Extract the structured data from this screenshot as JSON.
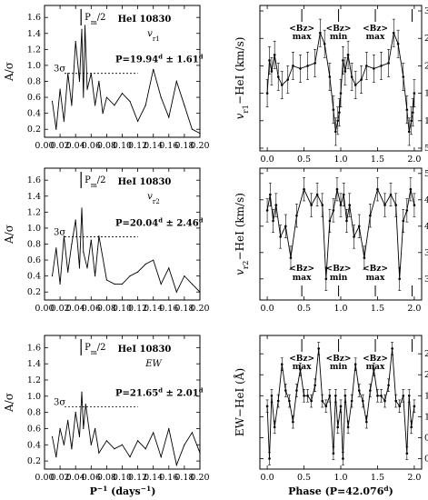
{
  "figure": {
    "left_panels": [
      {
        "pm_label": "P",
        "pm_sub": "m",
        "pm_tail": "/2",
        "line_label": "HeI 10830",
        "quantity": "v",
        "quantity_sub": "r1",
        "period_text": "P=19.94",
        "period_err": "± 1.61",
        "day_sup": "d",
        "sigma_label": "3σ",
        "ylabel": "A/σ"
      },
      {
        "pm_label": "P",
        "pm_sub": "m",
        "pm_tail": "/2",
        "line_label": "HeI 10830",
        "quantity": "v",
        "quantity_sub": "r2",
        "period_text": "P=20.04",
        "period_err": "± 2.46",
        "day_sup": "d",
        "sigma_label": "3σ",
        "ylabel": "A/σ"
      },
      {
        "pm_label": "P",
        "pm_sub": "m",
        "pm_tail": "/2",
        "line_label": "HeI 10830",
        "quantity": "EW",
        "quantity_sub": "",
        "period_text": "P=21.65",
        "period_err": "± 2.01",
        "day_sup": "d",
        "sigma_label": "3σ",
        "ylabel": "A/σ"
      }
    ],
    "right_panels": [
      {
        "ylabel": "v",
        "ylabel_sub": "r1",
        "ylabel_tail": "−HeI  (km/s)"
      },
      {
        "ylabel": "v",
        "ylabel_sub": "r2",
        "ylabel_tail": "−HeI  (km/s)"
      },
      {
        "ylabel": "EW−HeI  (Å)"
      }
    ],
    "bz_labels": {
      "top": "<Bz>",
      "max": "max",
      "min": "min"
    },
    "left_xlabel": "P",
    "left_xlabel_sup": "−1",
    "left_xlabel_unit": " (days",
    "left_xlabel_unit_sup": "−1",
    "left_xlabel_close": ")",
    "right_xlabel": "Phase (P=42.076",
    "right_xlabel_sup": "d",
    "right_xlabel_close": ")"
  },
  "chart_data": [
    {
      "type": "line",
      "panel": "periodogram-vr1",
      "xlim": [
        0,
        0.2
      ],
      "ylim": [
        0.1,
        1.75
      ],
      "xticks": [
        "0.00",
        "0.02",
        "0.04",
        "0.06",
        "0.08",
        "0.10",
        "0.12",
        "0.14",
        "0.16",
        "0.18",
        "0.20"
      ],
      "yticks": [
        "0.2",
        "0.4",
        "0.6",
        "0.8",
        "1.0",
        "1.2",
        "1.4",
        "1.6"
      ],
      "x": [
        0.01,
        0.015,
        0.02,
        0.025,
        0.03,
        0.035,
        0.04,
        0.045,
        0.048,
        0.05,
        0.052,
        0.055,
        0.06,
        0.065,
        0.07,
        0.075,
        0.08,
        0.09,
        0.1,
        0.11,
        0.12,
        0.13,
        0.14,
        0.15,
        0.16,
        0.17,
        0.18,
        0.19,
        0.2
      ],
      "y": [
        0.55,
        0.2,
        0.7,
        0.3,
        0.9,
        0.5,
        1.3,
        0.8,
        1.45,
        0.6,
        1.5,
        0.7,
        0.9,
        0.5,
        0.8,
        0.4,
        0.6,
        0.5,
        0.65,
        0.55,
        0.3,
        0.5,
        0.95,
        0.6,
        0.35,
        0.8,
        0.5,
        0.2,
        0.15
      ],
      "threshold_3sigma": 0.9,
      "pm_half_x": 0.047
    },
    {
      "type": "line",
      "panel": "periodogram-vr2",
      "xlim": [
        0,
        0.2
      ],
      "ylim": [
        0.1,
        1.75
      ],
      "xticks": [
        "0.00",
        "0.02",
        "0.04",
        "0.06",
        "0.08",
        "0.10",
        "0.12",
        "0.14",
        "0.16",
        "0.18",
        "0.20"
      ],
      "yticks": [
        "0.2",
        "0.4",
        "0.6",
        "0.8",
        "1.0",
        "1.2",
        "1.4",
        "1.6"
      ],
      "x": [
        0.01,
        0.015,
        0.02,
        0.025,
        0.03,
        0.035,
        0.04,
        0.045,
        0.048,
        0.05,
        0.055,
        0.06,
        0.065,
        0.07,
        0.08,
        0.09,
        0.1,
        0.11,
        0.12,
        0.13,
        0.14,
        0.15,
        0.16,
        0.17,
        0.18,
        0.19,
        0.2
      ],
      "y": [
        0.4,
        0.75,
        0.3,
        0.9,
        0.45,
        0.8,
        1.1,
        0.5,
        1.25,
        0.7,
        0.5,
        0.85,
        0.4,
        0.9,
        0.35,
        0.3,
        0.3,
        0.4,
        0.45,
        0.55,
        0.6,
        0.3,
        0.5,
        0.2,
        0.4,
        0.3,
        0.2
      ],
      "threshold_3sigma": 0.89,
      "pm_half_x": 0.047
    },
    {
      "type": "line",
      "panel": "periodogram-ew",
      "xlim": [
        0,
        0.2
      ],
      "ylim": [
        0.1,
        1.75
      ],
      "xticks": [
        "0.00",
        "0.02",
        "0.04",
        "0.06",
        "0.08",
        "0.10",
        "0.12",
        "0.14",
        "0.16",
        "0.18",
        "0.20"
      ],
      "yticks": [
        "0.2",
        "0.4",
        "0.6",
        "0.8",
        "1.0",
        "1.2",
        "1.4",
        "1.6"
      ],
      "x": [
        0.01,
        0.015,
        0.02,
        0.025,
        0.03,
        0.035,
        0.04,
        0.045,
        0.048,
        0.05,
        0.053,
        0.06,
        0.065,
        0.07,
        0.08,
        0.09,
        0.1,
        0.11,
        0.12,
        0.13,
        0.14,
        0.15,
        0.16,
        0.17,
        0.18,
        0.19,
        0.2
      ],
      "y": [
        0.5,
        0.25,
        0.6,
        0.4,
        0.7,
        0.35,
        0.8,
        0.5,
        1.05,
        0.6,
        0.9,
        0.4,
        0.6,
        0.3,
        0.45,
        0.35,
        0.4,
        0.25,
        0.45,
        0.35,
        0.55,
        0.25,
        0.6,
        0.15,
        0.4,
        0.55,
        0.3
      ],
      "threshold_3sigma": 0.87,
      "pm_half_x": 0.047
    },
    {
      "type": "scatter",
      "panel": "phase-vr1",
      "xlim": [
        -0.1,
        2.1
      ],
      "ylim": [
        45,
        310
      ],
      "xticks": [
        "0.0",
        "0.5",
        "1.0",
        "1.5",
        "2.0"
      ],
      "yticks": [
        "50",
        "100",
        "150",
        "200",
        "250",
        "300"
      ],
      "x": [
        0.0,
        0.03,
        0.06,
        0.1,
        0.15,
        0.2,
        0.28,
        0.35,
        0.45,
        0.55,
        0.65,
        0.72,
        0.78,
        0.85,
        0.9,
        0.93,
        0.96,
        0.98,
        1.0,
        1.03,
        1.06,
        1.1,
        1.15,
        1.2,
        1.28,
        1.35,
        1.45,
        1.55,
        1.65,
        1.72,
        1.78,
        1.85,
        1.9,
        1.93,
        1.96,
        1.98,
        2.0
      ],
      "y": [
        150,
        210,
        190,
        220,
        180,
        165,
        175,
        200,
        195,
        200,
        205,
        260,
        240,
        180,
        120,
        80,
        100,
        115,
        150,
        210,
        190,
        220,
        180,
        165,
        175,
        200,
        195,
        200,
        205,
        260,
        240,
        180,
        120,
        80,
        100,
        115,
        150
      ],
      "yerr": 25,
      "bz_phases": [
        0.47,
        0.97,
        1.47,
        1.97
      ],
      "bz_kinds": [
        "max",
        "min",
        "max",
        "min"
      ]
    },
    {
      "type": "scatter",
      "panel": "phase-vr2",
      "xlim": [
        -0.1,
        2.1
      ],
      "ylim": [
        260,
        510
      ],
      "xticks": [
        "0.0",
        "0.5",
        "1.0",
        "1.5",
        "2.0"
      ],
      "yticks": [
        "300",
        "350",
        "400",
        "450",
        "500"
      ],
      "x": [
        0.0,
        0.04,
        0.08,
        0.12,
        0.18,
        0.25,
        0.32,
        0.4,
        0.5,
        0.6,
        0.68,
        0.75,
        0.8,
        0.85,
        0.9,
        0.95,
        1.0,
        1.04,
        1.08,
        1.12,
        1.18,
        1.25,
        1.32,
        1.4,
        1.5,
        1.6,
        1.68,
        1.75,
        1.8,
        1.85,
        1.9,
        1.95,
        2.0
      ],
      "y": [
        430,
        460,
        410,
        440,
        380,
        400,
        340,
        420,
        470,
        440,
        460,
        440,
        300,
        410,
        430,
        470,
        440,
        460,
        410,
        440,
        380,
        400,
        340,
        420,
        470,
        440,
        460,
        440,
        300,
        410,
        430,
        470,
        440
      ],
      "yerr": 22,
      "bz_phases": [
        0.47,
        0.97,
        1.47,
        1.97
      ],
      "bz_kinds": [
        "max",
        "min",
        "max",
        "min"
      ]
    },
    {
      "type": "scatter",
      "panel": "phase-ew",
      "xlim": [
        -0.1,
        2.1
      ],
      "ylim": [
        0.2,
        2.75
      ],
      "xticks": [
        "0.0",
        "0.5",
        "1.0",
        "1.5",
        "2.0"
      ],
      "yticks": [
        "0.4",
        "0.8",
        "1.2",
        "1.6",
        "2.0",
        "2.4"
      ],
      "x": [
        0.0,
        0.03,
        0.06,
        0.1,
        0.15,
        0.2,
        0.25,
        0.3,
        0.35,
        0.4,
        0.45,
        0.5,
        0.55,
        0.6,
        0.65,
        0.7,
        0.75,
        0.8,
        0.85,
        0.9,
        0.93,
        0.96,
        1.0,
        1.03,
        1.06,
        1.1,
        1.15,
        1.2,
        1.25,
        1.3,
        1.35,
        1.4,
        1.45,
        1.5,
        1.55,
        1.6,
        1.65,
        1.7,
        1.75,
        1.8,
        1.85,
        1.9,
        1.93,
        1.96,
        2.0
      ],
      "y": [
        1.4,
        0.4,
        1.6,
        1.0,
        1.5,
        2.2,
        1.7,
        1.5,
        1.1,
        1.7,
        2.1,
        1.6,
        1.6,
        1.5,
        1.8,
        2.5,
        1.5,
        1.4,
        1.6,
        0.5,
        1.6,
        1.0,
        1.4,
        0.4,
        1.6,
        1.0,
        1.5,
        2.2,
        1.7,
        1.5,
        1.1,
        1.7,
        2.1,
        1.6,
        1.6,
        1.5,
        1.8,
        2.5,
        1.5,
        1.4,
        1.6,
        0.5,
        1.6,
        1.0,
        1.4
      ],
      "yerr": 0.12,
      "bz_phases": [
        0.47,
        0.97,
        1.47,
        1.97
      ],
      "bz_kinds": [
        "max",
        "min",
        "max",
        "min"
      ]
    }
  ]
}
